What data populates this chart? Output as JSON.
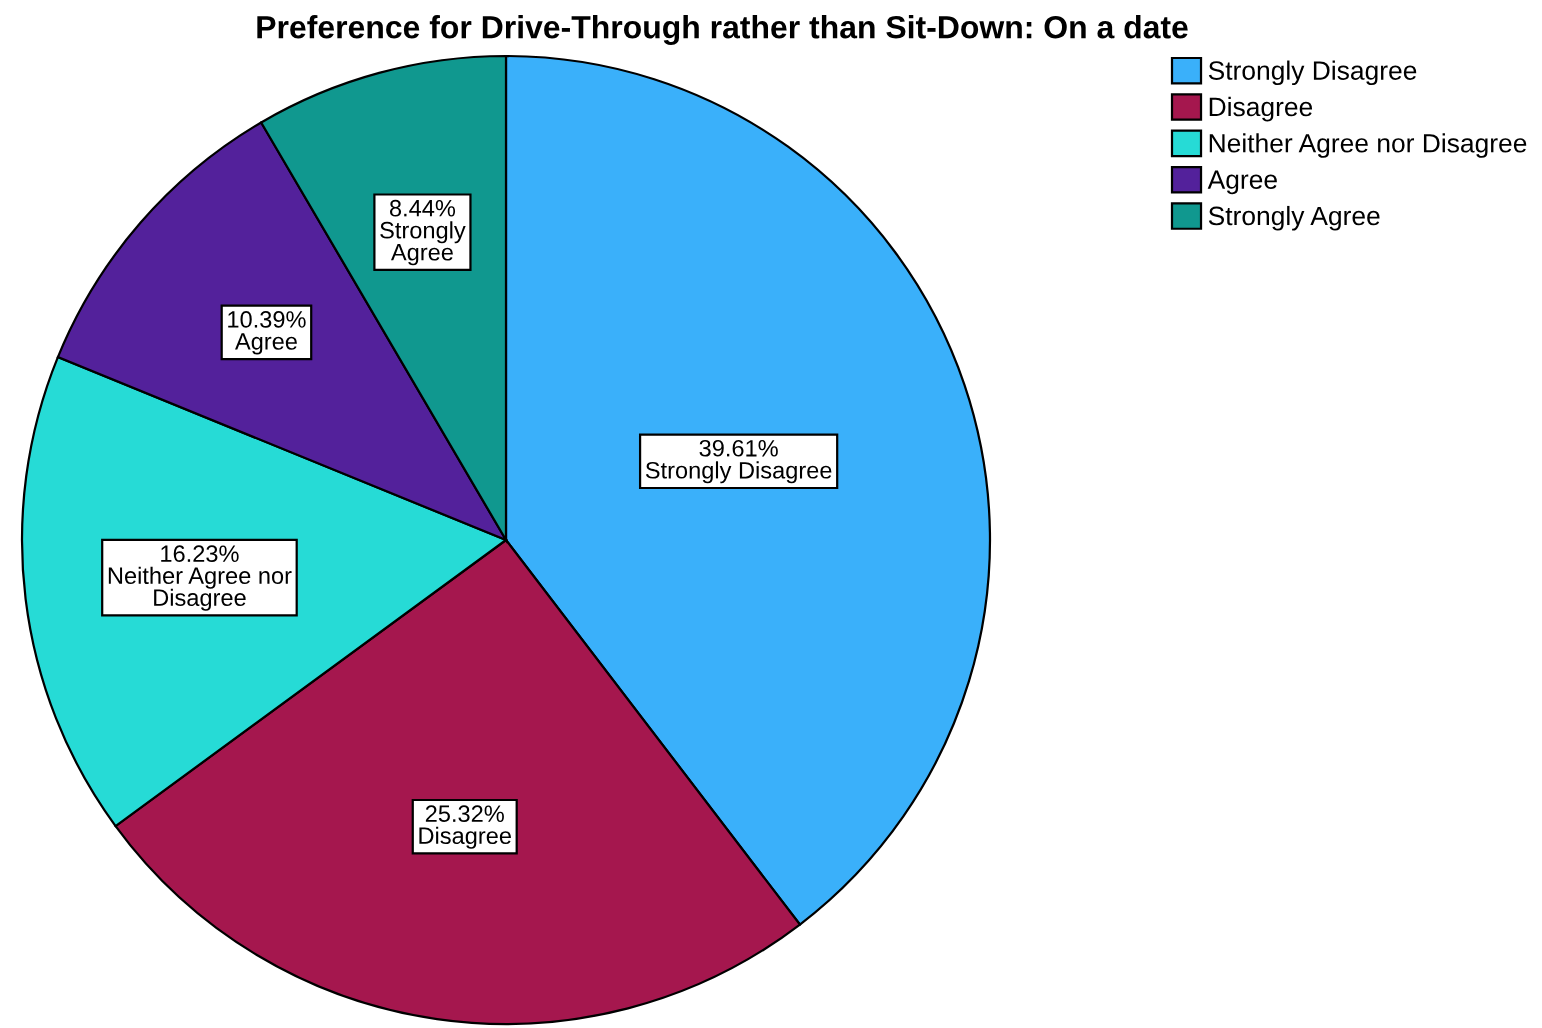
{
  "chart_data": {
    "type": "pie",
    "title": "Preference for Drive-Through rather than Sit-Down: On a date",
    "categories": [
      "Strongly Disagree",
      "Disagree",
      "Neither Agree nor Disagree",
      "Agree",
      "Strongly Agree"
    ],
    "values": [
      39.61,
      25.32,
      16.23,
      10.39,
      8.44
    ],
    "colors": [
      "#3ab0fa",
      "#a5174e",
      "#26dbd6",
      "#53219b",
      "#10988f"
    ],
    "value_labels": [
      "39.61%",
      "25.32%",
      "16.23%",
      "10.39%",
      "8.44%"
    ],
    "legend": "top right"
  }
}
